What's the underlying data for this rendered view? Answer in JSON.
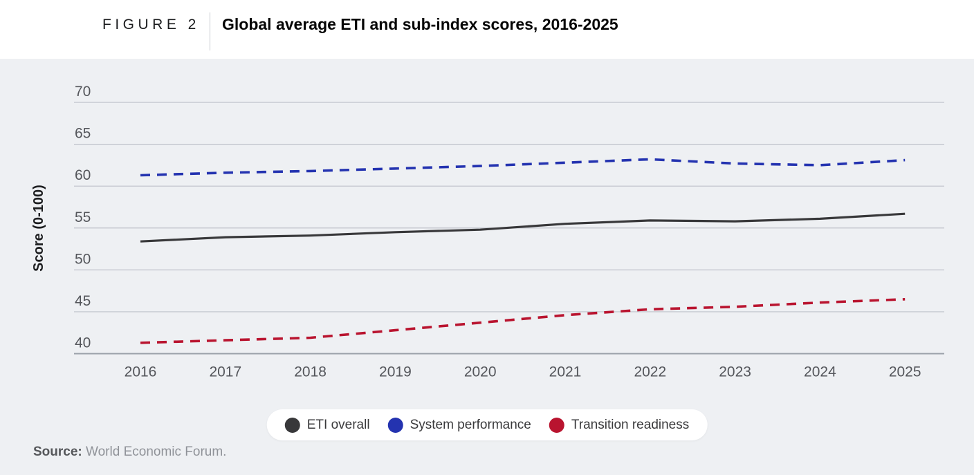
{
  "figure": {
    "label": "FIGURE 2",
    "title": "Global average ETI and sub-index scores, 2016-2025"
  },
  "chart_data": {
    "type": "line",
    "title": "Global average ETI and sub-index scores, 2016-2025",
    "x": [
      2016,
      2017,
      2018,
      2019,
      2020,
      2021,
      2022,
      2023,
      2024,
      2025
    ],
    "series": [
      {
        "name": "ETI overall",
        "color": "#38383a",
        "style": "solid",
        "values": [
          53.4,
          53.9,
          54.1,
          54.5,
          54.8,
          55.5,
          55.9,
          55.8,
          56.1,
          56.7
        ]
      },
      {
        "name": "System performance",
        "color": "#2433b0",
        "style": "dashed",
        "values": [
          61.3,
          61.6,
          61.8,
          62.1,
          62.4,
          62.8,
          63.2,
          62.7,
          62.5,
          63.1
        ]
      },
      {
        "name": "Transition readiness",
        "color": "#b9142f",
        "style": "dashed",
        "values": [
          41.3,
          41.6,
          41.9,
          42.8,
          43.7,
          44.6,
          45.3,
          45.6,
          46.1,
          46.5
        ]
      }
    ],
    "xlabel": "",
    "ylabel": "Score (0-100)",
    "ylim": [
      40,
      70
    ],
    "yticks": [
      40,
      45,
      50,
      55,
      60,
      65,
      70
    ],
    "grid": true,
    "legend_position": "bottom"
  },
  "source": {
    "prefix": "Source:",
    "text": " World Economic Forum."
  },
  "colors": {
    "stage_background": "#eef0f3",
    "gridline": "#bdc1c9",
    "axis_line": "#9aa0a8",
    "tick_text": "#54565b",
    "legend_background": "#ffffff"
  }
}
